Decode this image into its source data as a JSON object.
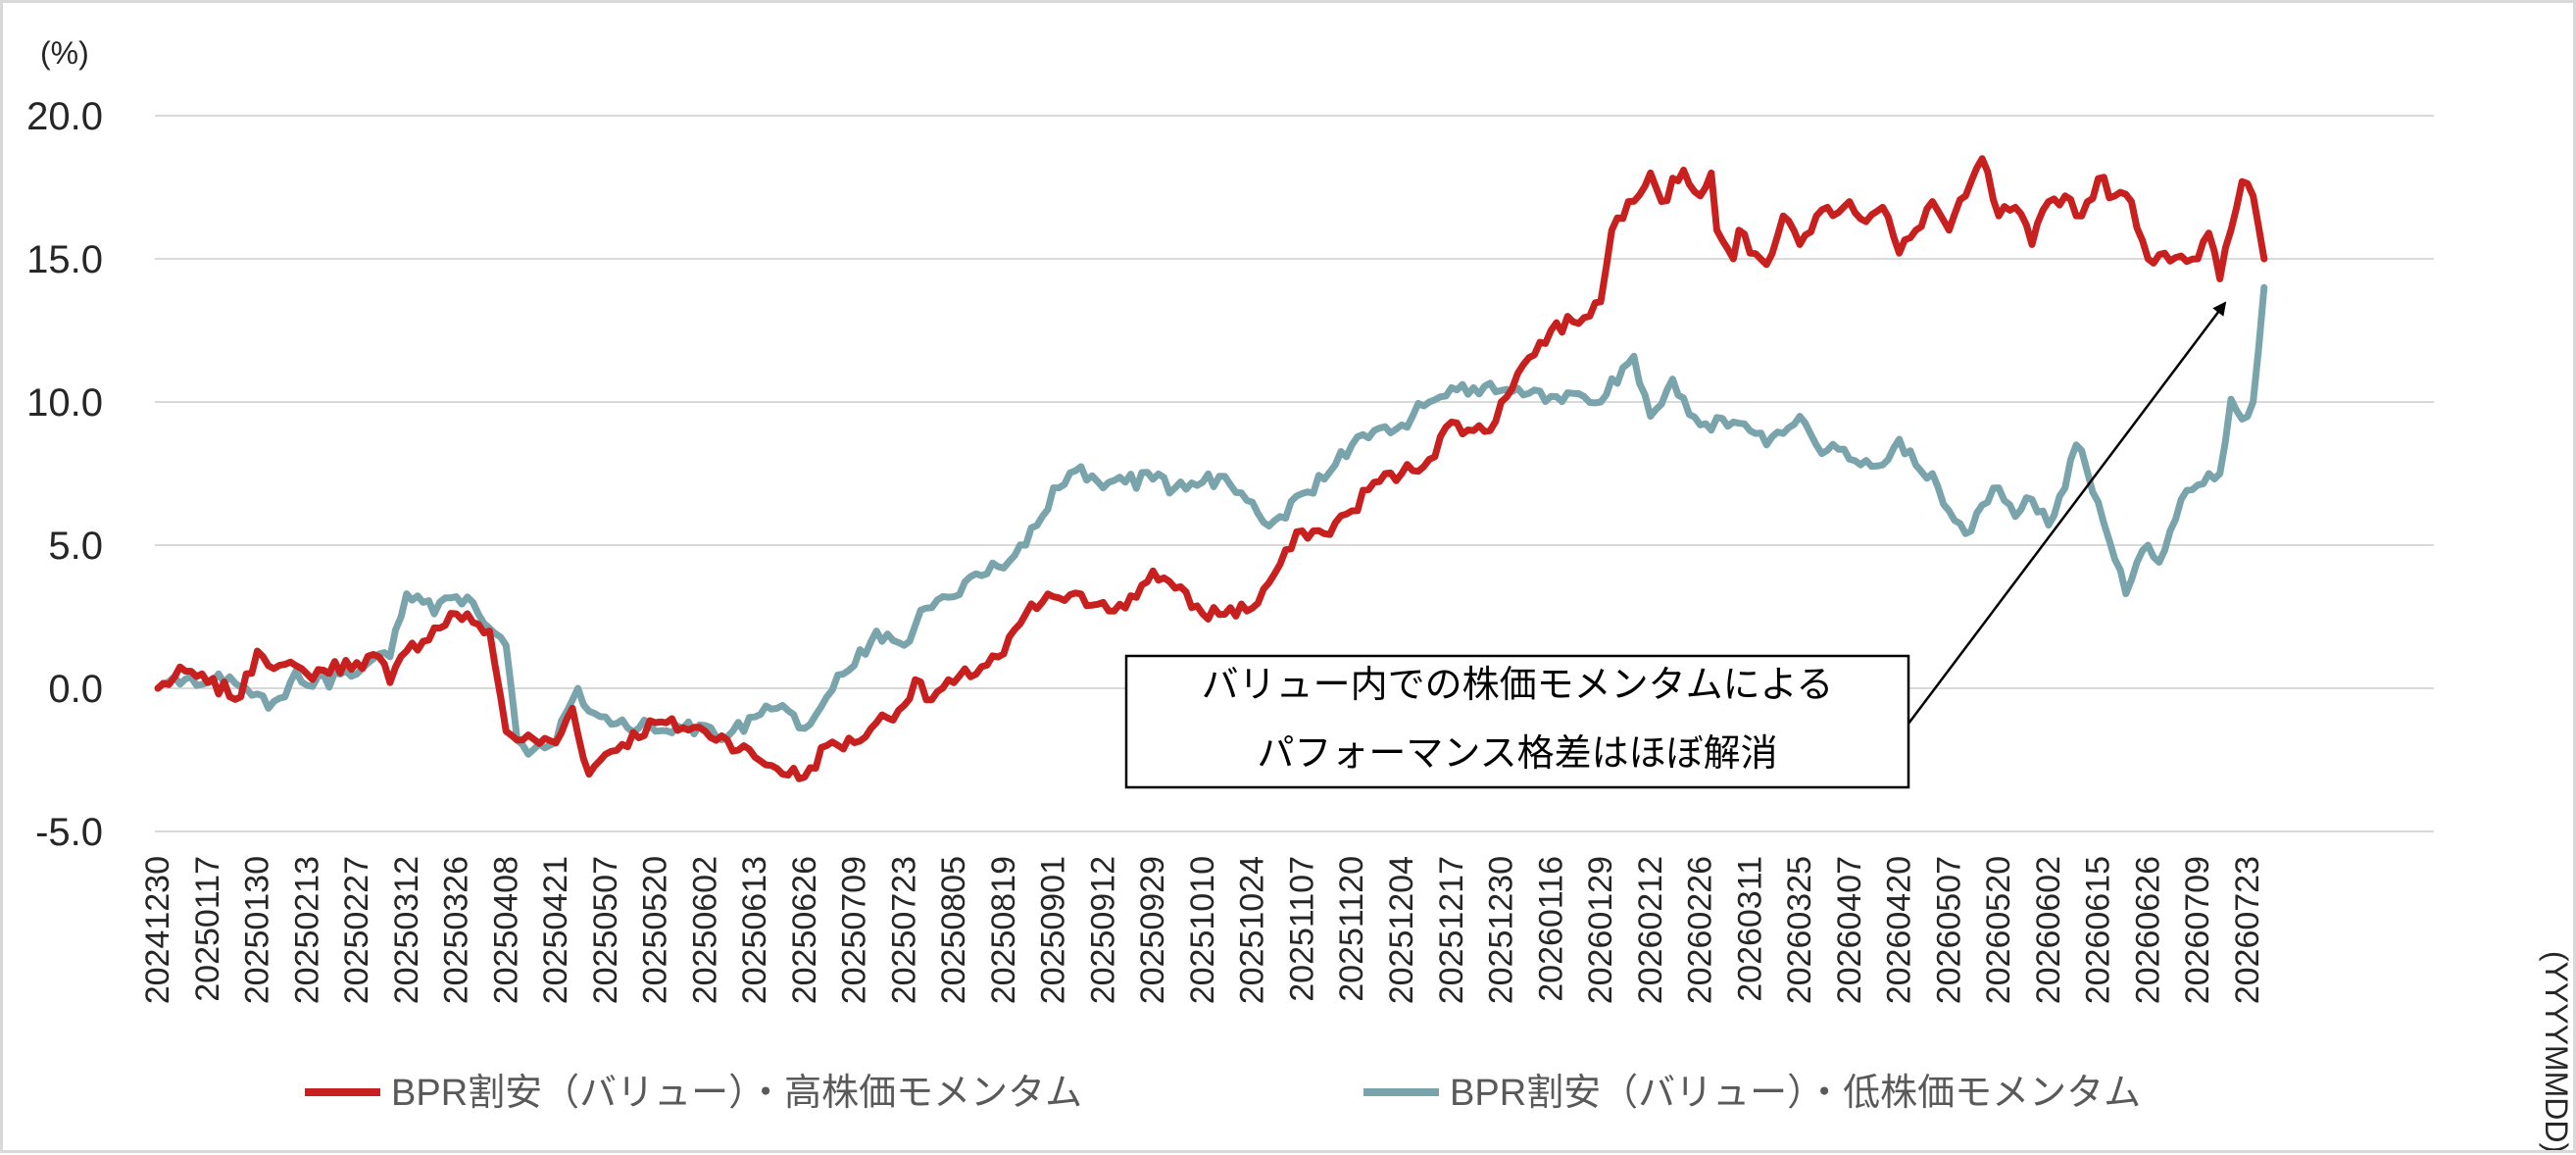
{
  "chart_data": {
    "type": "line",
    "title": "",
    "y_unit_label": "(%)",
    "x_unit_label": "(YYYYMMDD)",
    "ylim": [
      -5.0,
      20.0
    ],
    "y_ticks": [
      "20.0",
      "15.0",
      "10.0",
      "5.0",
      "0.0",
      "-5.0"
    ],
    "grid": true,
    "legend_position": "bottom",
    "x_tick_labels": [
      "20241230",
      "20250117",
      "20250130",
      "20250213",
      "20250227",
      "20250312",
      "20250326",
      "20250408",
      "20250421",
      "20250507",
      "20250520",
      "20250602",
      "20250613",
      "20250626",
      "20250709",
      "20250723",
      "20250805",
      "20250819",
      "20250901",
      "20250912",
      "20250929",
      "20251010",
      "20251024",
      "20251107",
      "20251120",
      "20251204",
      "20251217",
      "20251230",
      "20260116",
      "20260129",
      "20260212",
      "20260226",
      "20260311",
      "20260325",
      "20260407",
      "20260420",
      "20260507",
      "20260520",
      "20260602",
      "20260615",
      "20260626",
      "20260709",
      "20260723"
    ],
    "x_tick_points": [
      0,
      9,
      18,
      27,
      36,
      45,
      54,
      63,
      72,
      81,
      90,
      99,
      108,
      117,
      126,
      135,
      144,
      153,
      162,
      171,
      180,
      189,
      198,
      207,
      216,
      225,
      234,
      243,
      252,
      261,
      270,
      279,
      288,
      297,
      306,
      315,
      324,
      333,
      342,
      351,
      360,
      369,
      378
    ],
    "series": [
      {
        "name": "BPR割安（バリュー）・高株価モメンタム",
        "color": "#c8201f",
        "anchors": [
          [
            0,
            0.0
          ],
          [
            5,
            0.6
          ],
          [
            9,
            0.2
          ],
          [
            15,
            -0.3
          ],
          [
            18,
            1.3
          ],
          [
            22,
            0.8
          ],
          [
            27,
            0.5
          ],
          [
            36,
            0.9
          ],
          [
            40,
            1.1
          ],
          [
            42,
            0.2
          ],
          [
            45,
            1.3
          ],
          [
            54,
            2.6
          ],
          [
            57,
            2.3
          ],
          [
            60,
            2.0
          ],
          [
            63,
            -1.5
          ],
          [
            66,
            -1.8
          ],
          [
            72,
            -1.9
          ],
          [
            75,
            -0.7
          ],
          [
            78,
            -3.0
          ],
          [
            81,
            -2.3
          ],
          [
            90,
            -1.2
          ],
          [
            99,
            -1.5
          ],
          [
            103,
            -1.8
          ],
          [
            108,
            -2.4
          ],
          [
            112,
            -2.8
          ],
          [
            117,
            -3.1
          ],
          [
            121,
            -2.0
          ],
          [
            126,
            -1.9
          ],
          [
            130,
            -1.2
          ],
          [
            135,
            -0.6
          ],
          [
            137,
            0.3
          ],
          [
            139,
            -0.4
          ],
          [
            144,
            0.2
          ],
          [
            153,
            1.2
          ],
          [
            157,
            2.6
          ],
          [
            162,
            3.2
          ],
          [
            171,
            3.0
          ],
          [
            175,
            2.8
          ],
          [
            180,
            4.1
          ],
          [
            184,
            3.5
          ],
          [
            189,
            2.6
          ],
          [
            198,
            2.8
          ],
          [
            202,
            4.0
          ],
          [
            207,
            5.5
          ],
          [
            211,
            5.4
          ],
          [
            216,
            6.2
          ],
          [
            220,
            7.2
          ],
          [
            225,
            7.5
          ],
          [
            230,
            8.0
          ],
          [
            234,
            9.3
          ],
          [
            238,
            9.0
          ],
          [
            241,
            9.0
          ],
          [
            243,
            10.0
          ],
          [
            246,
            11.0
          ],
          [
            252,
            12.5
          ],
          [
            256,
            12.8
          ],
          [
            261,
            13.5
          ],
          [
            263,
            16.0
          ],
          [
            266,
            17.0
          ],
          [
            270,
            18.0
          ],
          [
            272,
            17.0
          ],
          [
            276,
            18.1
          ],
          [
            279,
            17.2
          ],
          [
            281,
            18.0
          ],
          [
            282,
            16.0
          ],
          [
            285,
            15.0
          ],
          [
            286,
            16.0
          ],
          [
            288,
            15.2
          ],
          [
            291,
            14.8
          ],
          [
            294,
            16.5
          ],
          [
            297,
            15.5
          ],
          [
            300,
            16.5
          ],
          [
            306,
            17.0
          ],
          [
            309,
            16.3
          ],
          [
            312,
            16.8
          ],
          [
            315,
            15.2
          ],
          [
            318,
            16.0
          ],
          [
            321,
            17.0
          ],
          [
            324,
            16.0
          ],
          [
            327,
            17.2
          ],
          [
            330,
            18.5
          ],
          [
            333,
            16.5
          ],
          [
            336,
            16.8
          ],
          [
            339,
            15.5
          ],
          [
            342,
            17.0
          ],
          [
            345,
            17.2
          ],
          [
            348,
            16.5
          ],
          [
            351,
            17.8
          ],
          [
            354,
            17.2
          ],
          [
            357,
            17.0
          ],
          [
            360,
            15.0
          ],
          [
            363,
            15.2
          ],
          [
            366,
            15.1
          ],
          [
            369,
            15.0
          ],
          [
            371,
            15.9
          ],
          [
            373,
            14.3
          ],
          [
            375,
            16.0
          ],
          [
            377,
            17.7
          ],
          [
            379,
            17.2
          ],
          [
            381,
            15.0
          ]
        ]
      },
      {
        "name": "BPR割安（バリュー）・低株価モメンタム",
        "color": "#7aa4ab",
        "anchors": [
          [
            0,
            0.0
          ],
          [
            3,
            0.4
          ],
          [
            7,
            0.1
          ],
          [
            9,
            0.2
          ],
          [
            13,
            0.4
          ],
          [
            18,
            -0.2
          ],
          [
            20,
            -0.7
          ],
          [
            23,
            -0.3
          ],
          [
            25,
            0.6
          ],
          [
            27,
            0.1
          ],
          [
            36,
            0.5
          ],
          [
            40,
            1.2
          ],
          [
            42,
            1.1
          ],
          [
            44,
            2.5
          ],
          [
            45,
            3.3
          ],
          [
            48,
            3.0
          ],
          [
            50,
            2.6
          ],
          [
            54,
            3.2
          ],
          [
            57,
            3.0
          ],
          [
            60,
            2.1
          ],
          [
            63,
            1.5
          ],
          [
            65,
            -1.8
          ],
          [
            67,
            -2.3
          ],
          [
            72,
            -1.9
          ],
          [
            74,
            -0.8
          ],
          [
            76,
            0.0
          ],
          [
            78,
            -0.8
          ],
          [
            81,
            -1.0
          ],
          [
            90,
            -1.5
          ],
          [
            99,
            -1.3
          ],
          [
            103,
            -1.7
          ],
          [
            108,
            -1.0
          ],
          [
            112,
            -0.7
          ],
          [
            117,
            -1.4
          ],
          [
            121,
            -0.3
          ],
          [
            124,
            0.5
          ],
          [
            126,
            0.8
          ],
          [
            130,
            2.0
          ],
          [
            135,
            1.5
          ],
          [
            139,
            2.8
          ],
          [
            144,
            3.2
          ],
          [
            148,
            4.0
          ],
          [
            153,
            4.2
          ],
          [
            157,
            5.0
          ],
          [
            160,
            6.0
          ],
          [
            162,
            7.0
          ],
          [
            166,
            7.6
          ],
          [
            171,
            7.0
          ],
          [
            175,
            7.2
          ],
          [
            180,
            7.3
          ],
          [
            184,
            7.0
          ],
          [
            189,
            7.2
          ],
          [
            193,
            7.4
          ],
          [
            198,
            6.5
          ],
          [
            200,
            5.8
          ],
          [
            203,
            6.0
          ],
          [
            207,
            6.8
          ],
          [
            211,
            7.3
          ],
          [
            216,
            8.5
          ],
          [
            220,
            9.0
          ],
          [
            225,
            9.2
          ],
          [
            230,
            10.0
          ],
          [
            234,
            10.5
          ],
          [
            238,
            10.5
          ],
          [
            243,
            10.4
          ],
          [
            248,
            10.3
          ],
          [
            252,
            10.2
          ],
          [
            256,
            10.3
          ],
          [
            261,
            10.0
          ],
          [
            265,
            11.2
          ],
          [
            267,
            11.6
          ],
          [
            270,
            9.5
          ],
          [
            274,
            10.8
          ],
          [
            279,
            9.2
          ],
          [
            285,
            9.3
          ],
          [
            288,
            9.0
          ],
          [
            291,
            8.5
          ],
          [
            294,
            8.9
          ],
          [
            297,
            9.5
          ],
          [
            300,
            8.5
          ],
          [
            306,
            8.0
          ],
          [
            312,
            7.8
          ],
          [
            315,
            8.7
          ],
          [
            318,
            7.8
          ],
          [
            321,
            7.5
          ],
          [
            324,
            6.2
          ],
          [
            327,
            5.4
          ],
          [
            330,
            6.4
          ],
          [
            333,
            7.0
          ],
          [
            336,
            6.0
          ],
          [
            339,
            6.6
          ],
          [
            342,
            5.7
          ],
          [
            345,
            7.0
          ],
          [
            347,
            8.5
          ],
          [
            348,
            8.3
          ],
          [
            351,
            6.5
          ],
          [
            354,
            4.5
          ],
          [
            356,
            3.3
          ],
          [
            358,
            4.4
          ],
          [
            360,
            5.0
          ],
          [
            362,
            4.4
          ],
          [
            364,
            5.5
          ],
          [
            366,
            6.6
          ],
          [
            369,
            7.1
          ],
          [
            371,
            7.5
          ],
          [
            373,
            7.5
          ],
          [
            375,
            10.1
          ],
          [
            377,
            9.4
          ],
          [
            379,
            10.0
          ],
          [
            381,
            14.0
          ]
        ]
      }
    ],
    "annotation": {
      "lines": [
        "バリュー内での株価モメンタムによる",
        "パフォーマンス格差はほぼ解消"
      ]
    }
  }
}
